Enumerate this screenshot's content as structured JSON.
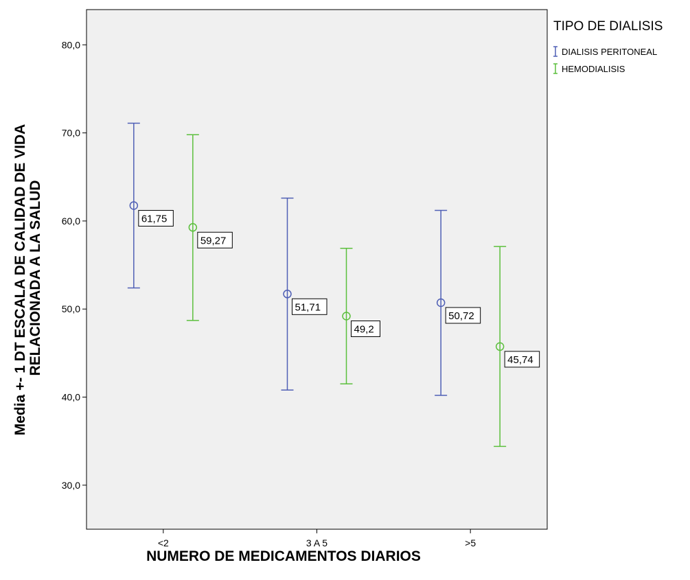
{
  "chart_data": {
    "type": "errorbar",
    "title": "",
    "xlabel": "NUMERO DE MEDICAMENTOS DIARIOS",
    "ylabel_lines": [
      "Media +- 1 DT ESCALA DE CALIDAD DE VIDA",
      "RELACIONADA A LA SALUD"
    ],
    "categories": [
      "<2",
      "3 A 5",
      ">5"
    ],
    "ylim": [
      25.0,
      84.0
    ],
    "yticks": [
      30.0,
      40.0,
      50.0,
      60.0,
      70.0,
      80.0
    ],
    "ytick_labels": [
      "30,0",
      "40,0",
      "50,0",
      "60,0",
      "70,0",
      "80,0"
    ],
    "grid": false,
    "plot_background": "#f0f0f0",
    "legend": {
      "title": "TIPO DE DIALISIS",
      "placement": "right"
    },
    "series": [
      {
        "name": "DIALISIS PERITONEAL",
        "color": "#4f5fb5",
        "means": [
          61.75,
          51.71,
          50.72
        ],
        "upper": [
          71.1,
          62.6,
          61.2
        ],
        "lower": [
          52.4,
          40.8,
          40.2
        ],
        "labels": [
          "61,75",
          "51,71",
          "50,72"
        ]
      },
      {
        "name": "HEMODIALISIS",
        "color": "#5bbf3c",
        "means": [
          59.27,
          49.2,
          45.74
        ],
        "upper": [
          69.8,
          56.9,
          57.1
        ],
        "lower": [
          48.7,
          41.5,
          34.4
        ],
        "labels": [
          "59,27",
          "49,2",
          "45,74"
        ]
      }
    ]
  }
}
